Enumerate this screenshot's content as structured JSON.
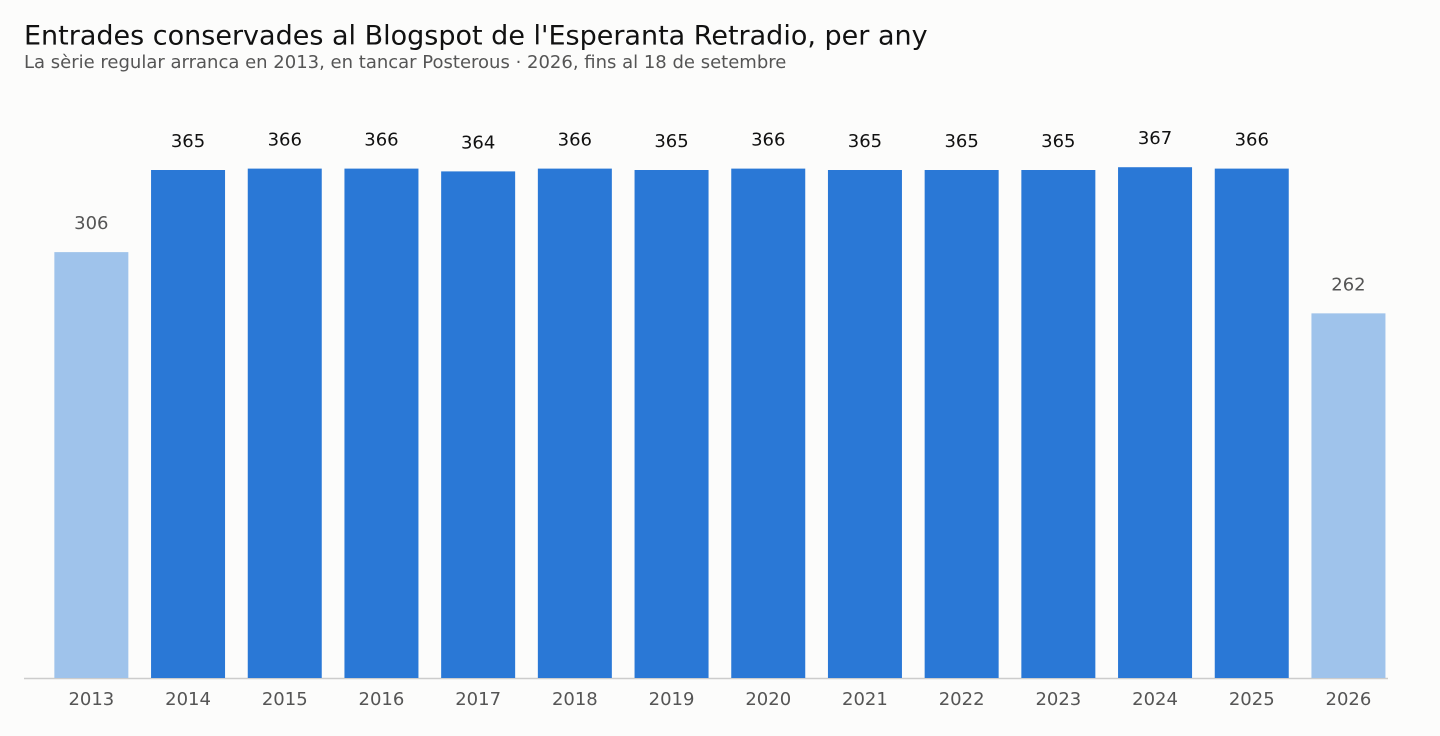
{
  "chart_data": {
    "type": "bar",
    "title": "Entrades conservades al Blogspot de l'Esperanta Retradio, per any",
    "subtitle": "La sèrie regular arranca en 2013, en tancar Posterous · 2026, fins al 18 de setembre",
    "categories": [
      "2013",
      "2014",
      "2015",
      "2016",
      "2017",
      "2018",
      "2019",
      "2020",
      "2021",
      "2022",
      "2023",
      "2024",
      "2025",
      "2026"
    ],
    "values": [
      306,
      365,
      366,
      366,
      364,
      366,
      365,
      366,
      365,
      365,
      365,
      367,
      366,
      262
    ],
    "colors": [
      "#9fc3eb",
      "#2a78d6",
      "#2a78d6",
      "#2a78d6",
      "#2a78d6",
      "#2a78d6",
      "#2a78d6",
      "#2a78d6",
      "#2a78d6",
      "#2a78d6",
      "#2a78d6",
      "#2a78d6",
      "#2a78d6",
      "#9fc3eb"
    ],
    "ylim": [
      0,
      365
    ]
  }
}
